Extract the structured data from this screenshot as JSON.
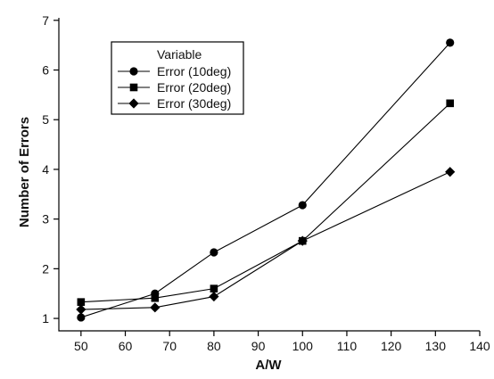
{
  "chart_data": {
    "type": "line",
    "xlabel": "A/W",
    "ylabel": "Number of Errors",
    "xlim": [
      45,
      140
    ],
    "ylim": [
      0.75,
      7.05
    ],
    "xticks": [
      50,
      60,
      70,
      80,
      90,
      100,
      110,
      120,
      130,
      140
    ],
    "yticks": [
      1,
      2,
      3,
      4,
      5,
      6,
      7
    ],
    "legend": {
      "title": "Variable",
      "placement": "top-left"
    },
    "series": [
      {
        "name": "Error (10deg)",
        "marker": "circle",
        "x": [
          50,
          66.7,
          80,
          100,
          133.3
        ],
        "y": [
          1.02,
          1.5,
          2.33,
          3.28,
          6.55
        ]
      },
      {
        "name": "Error (20deg)",
        "marker": "square",
        "x": [
          50,
          66.7,
          80,
          100,
          133.3
        ],
        "y": [
          1.33,
          1.41,
          1.6,
          2.56,
          5.33
        ]
      },
      {
        "name": "Error (30deg)",
        "marker": "diamond",
        "x": [
          50,
          66.7,
          80,
          100,
          133.3
        ],
        "y": [
          1.18,
          1.22,
          1.44,
          2.56,
          3.95
        ]
      }
    ]
  }
}
